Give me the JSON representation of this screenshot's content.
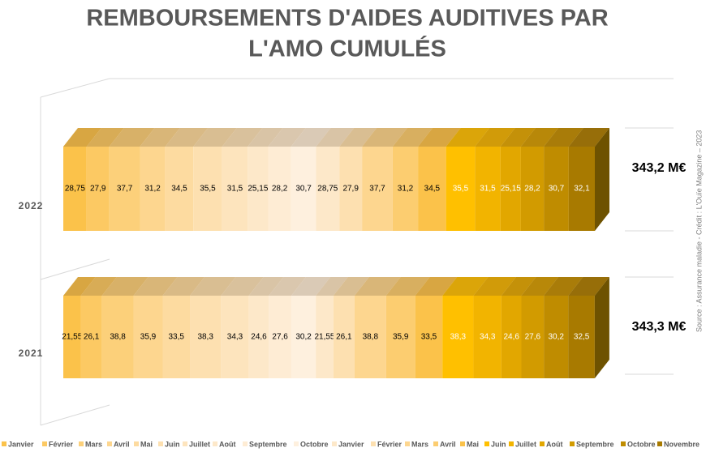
{
  "chart_data": {
    "type": "stacked-bar-3d",
    "orientation": "horizontal",
    "title": [
      "REMBOURSEMENTS D'AIDES AUDITIVES PAR",
      "L'AMO CUMULÉS"
    ],
    "categories": [
      "2022",
      "2021"
    ],
    "annotations": [
      "343,2 M€",
      "343,3 M€"
    ],
    "source": "Source : Assurance maladie - Crédit : L'Ouïe Magazine – 2023",
    "legend": "bottom",
    "series": [
      {
        "name": "Janvier",
        "color": "#fbc24a",
        "values": [
          28.75,
          21.55
        ],
        "value_labels": [
          "28,75",
          "21,55"
        ]
      },
      {
        "name": "Février",
        "color": "#fcc963",
        "values": [
          27.9,
          26.1
        ],
        "value_labels": [
          "27,9",
          "26,1"
        ]
      },
      {
        "name": "Mars",
        "color": "#fcd07a",
        "values": [
          37.7,
          38.8
        ],
        "value_labels": [
          "37,7",
          "38,8"
        ]
      },
      {
        "name": "Avril",
        "color": "#fdd68f",
        "values": [
          31.2,
          35.9
        ],
        "value_labels": [
          "31,2",
          "35,9"
        ]
      },
      {
        "name": "Mai",
        "color": "#fddba0",
        "values": [
          34.5,
          33.5
        ],
        "value_labels": [
          "34,5",
          "33,5"
        ]
      },
      {
        "name": "Juin",
        "color": "#fde0b0",
        "values": [
          35.5,
          38.3
        ],
        "value_labels": [
          "35,5",
          "38,3"
        ]
      },
      {
        "name": "Juillet",
        "color": "#fde4bd",
        "values": [
          31.5,
          34.3
        ],
        "value_labels": [
          "31,5",
          "34,3"
        ]
      },
      {
        "name": "Août",
        "color": "#fde8c9",
        "values": [
          25.15,
          24.6
        ],
        "value_labels": [
          "25,15",
          "24,6"
        ]
      },
      {
        "name": "Septembre",
        "color": "#feecd4",
        "values": [
          28.2,
          27.6
        ],
        "value_labels": [
          "28,2",
          "27,6"
        ]
      },
      {
        "name": "Octobre",
        "color": "#fef0de",
        "values": [
          30.7,
          30.2
        ],
        "value_labels": [
          "30,7",
          "30,2"
        ]
      },
      {
        "name": "Janvier",
        "color": "#fde8c9",
        "values": [
          28.75,
          21.55
        ],
        "value_labels": [
          "28,75",
          "21,55"
        ]
      },
      {
        "name": "Février",
        "color": "#fde0b0",
        "values": [
          27.9,
          26.1
        ],
        "value_labels": [
          "27,9",
          "26,1"
        ]
      },
      {
        "name": "Mars",
        "color": "#fdd68f",
        "values": [
          37.7,
          38.8
        ],
        "value_labels": [
          "37,7",
          "38,8"
        ]
      },
      {
        "name": "Avril",
        "color": "#fccd70",
        "values": [
          31.2,
          35.9
        ],
        "value_labels": [
          "31,2",
          "35,9"
        ]
      },
      {
        "name": "Mai",
        "color": "#fbc24a",
        "values": [
          34.5,
          33.5
        ],
        "value_labels": [
          "34,5",
          "33,5"
        ]
      },
      {
        "name": "Juin",
        "color": "#ffc000",
        "values": [
          35.5,
          38.3
        ],
        "value_labels": [
          "35,5",
          "38,3"
        ]
      },
      {
        "name": "Juillet",
        "color": "#f2b400",
        "values": [
          31.5,
          34.3
        ],
        "value_labels": [
          "31,5",
          "34,3"
        ]
      },
      {
        "name": "Août",
        "color": "#e2a700",
        "values": [
          25.15,
          24.6
        ],
        "value_labels": [
          "25,15",
          "24,6"
        ]
      },
      {
        "name": "Septembre",
        "color": "#d29b00",
        "values": [
          28.2,
          27.6
        ],
        "value_labels": [
          "28,2",
          "27,6"
        ]
      },
      {
        "name": "Octobre",
        "color": "#bf8c00",
        "values": [
          30.7,
          30.2
        ],
        "value_labels": [
          "30,7",
          "30,2"
        ]
      },
      {
        "name": "Novembre",
        "color": "#a87a00",
        "values": [
          32.1,
          32.5
        ],
        "value_labels": [
          "32,1",
          "32,5"
        ]
      }
    ]
  }
}
